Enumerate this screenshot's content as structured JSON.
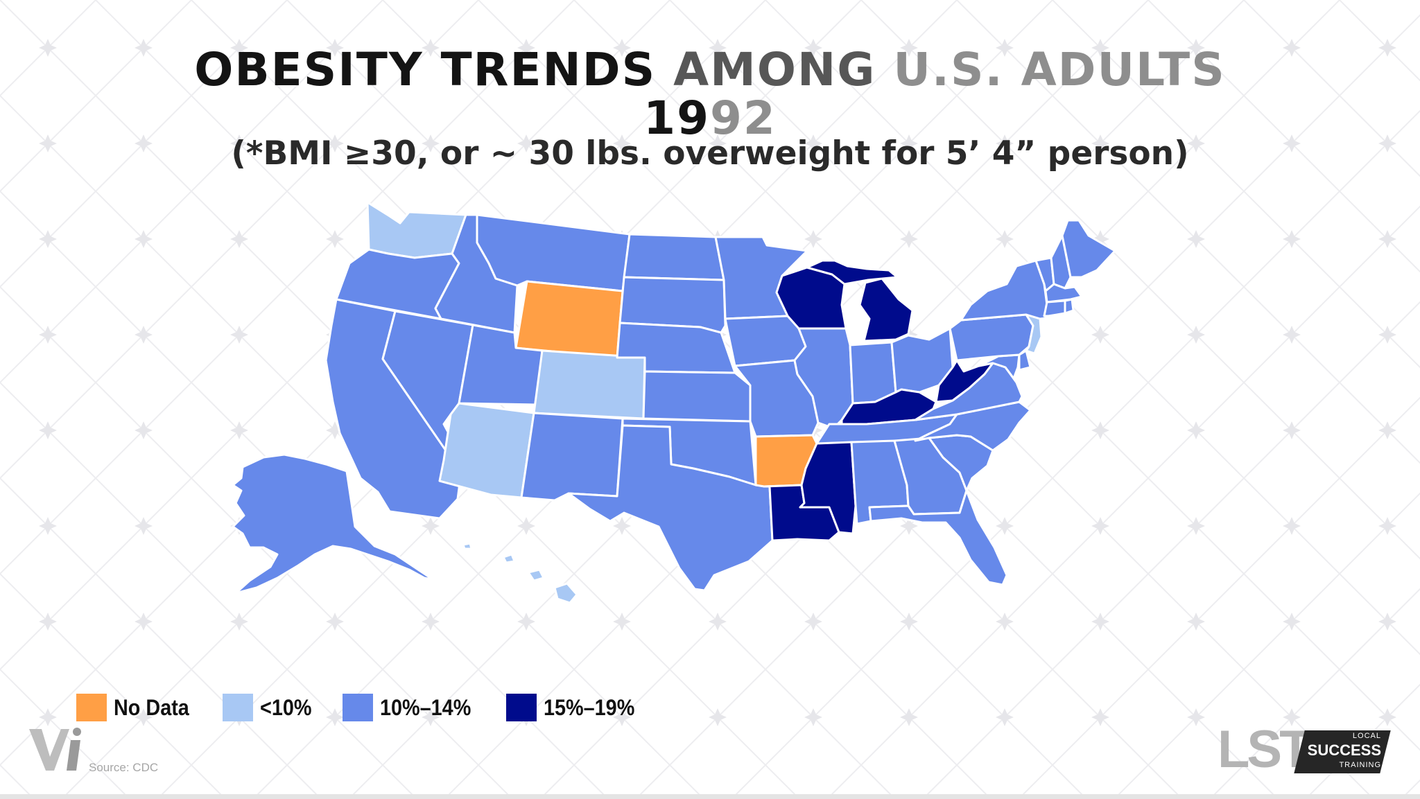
{
  "title": {
    "line1_part_dark": "OBESITY TRENDS ",
    "line1_part_mid": "AMONG ",
    "line1_part_gray": "U.S. ADULTS",
    "year_dark": "19",
    "year_gray": "92",
    "subtitle": "(*BMI ≥30, or ~ 30 lbs. overweight for 5’ 4” person)"
  },
  "legend": [
    {
      "label": "No Data",
      "color": "#ff9f45"
    },
    {
      "label": "<10%",
      "color": "#a8c8f4"
    },
    {
      "label": "10%–14%",
      "color": "#6689ea"
    },
    {
      "label": "15%–19%",
      "color": "#000b8c"
    }
  ],
  "map": {
    "no_data": [
      "Wyoming",
      "Arkansas"
    ],
    "under_10": [
      "Washington",
      "Colorado",
      "Arizona",
      "Hawaii",
      "New Jersey"
    ],
    "range_10_14": [
      "Oregon",
      "California",
      "Nevada",
      "Idaho",
      "Montana",
      "Utah",
      "New Mexico",
      "North Dakota",
      "South Dakota",
      "Nebraska",
      "Kansas",
      "Oklahoma",
      "Texas",
      "Minnesota",
      "Iowa",
      "Missouri",
      "Illinois",
      "Indiana",
      "Ohio",
      "Tennessee",
      "Alabama",
      "Georgia",
      "Florida",
      "South Carolina",
      "North Carolina",
      "Virginia",
      "Maryland",
      "Delaware",
      "Pennsylvania",
      "New York",
      "Vermont",
      "New Hampshire",
      "Maine",
      "Massachusetts",
      "Connecticut",
      "Rhode Island",
      "Alaska"
    ],
    "range_15_19": [
      "Wisconsin",
      "Michigan",
      "Kentucky",
      "West Virginia",
      "Mississippi",
      "Louisiana"
    ]
  },
  "source": "Source: CDC",
  "logos": {
    "vi": "Vi",
    "lst": {
      "letters": "LST",
      "local": "LOCAL",
      "success": "SUCCESS",
      "training": "TRAINING"
    }
  }
}
